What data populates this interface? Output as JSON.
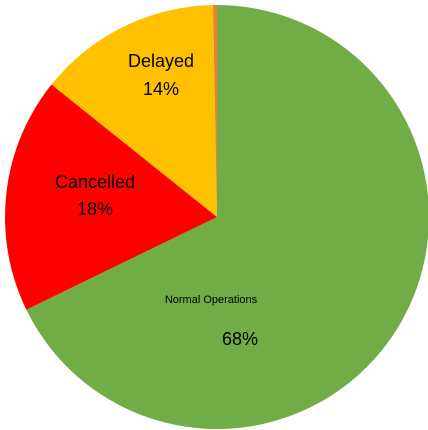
{
  "chart_data": {
    "type": "pie",
    "categories": [
      "Normal Operations",
      "Cancelled",
      "Delayed",
      null
    ],
    "values": [
      68,
      18,
      14,
      0.3
    ],
    "value_labels": [
      "68%",
      "18%",
      "14%",
      null
    ],
    "colors": [
      "#70ad47",
      "#ff0000",
      "#ffc000",
      "#ed7d31"
    ]
  }
}
